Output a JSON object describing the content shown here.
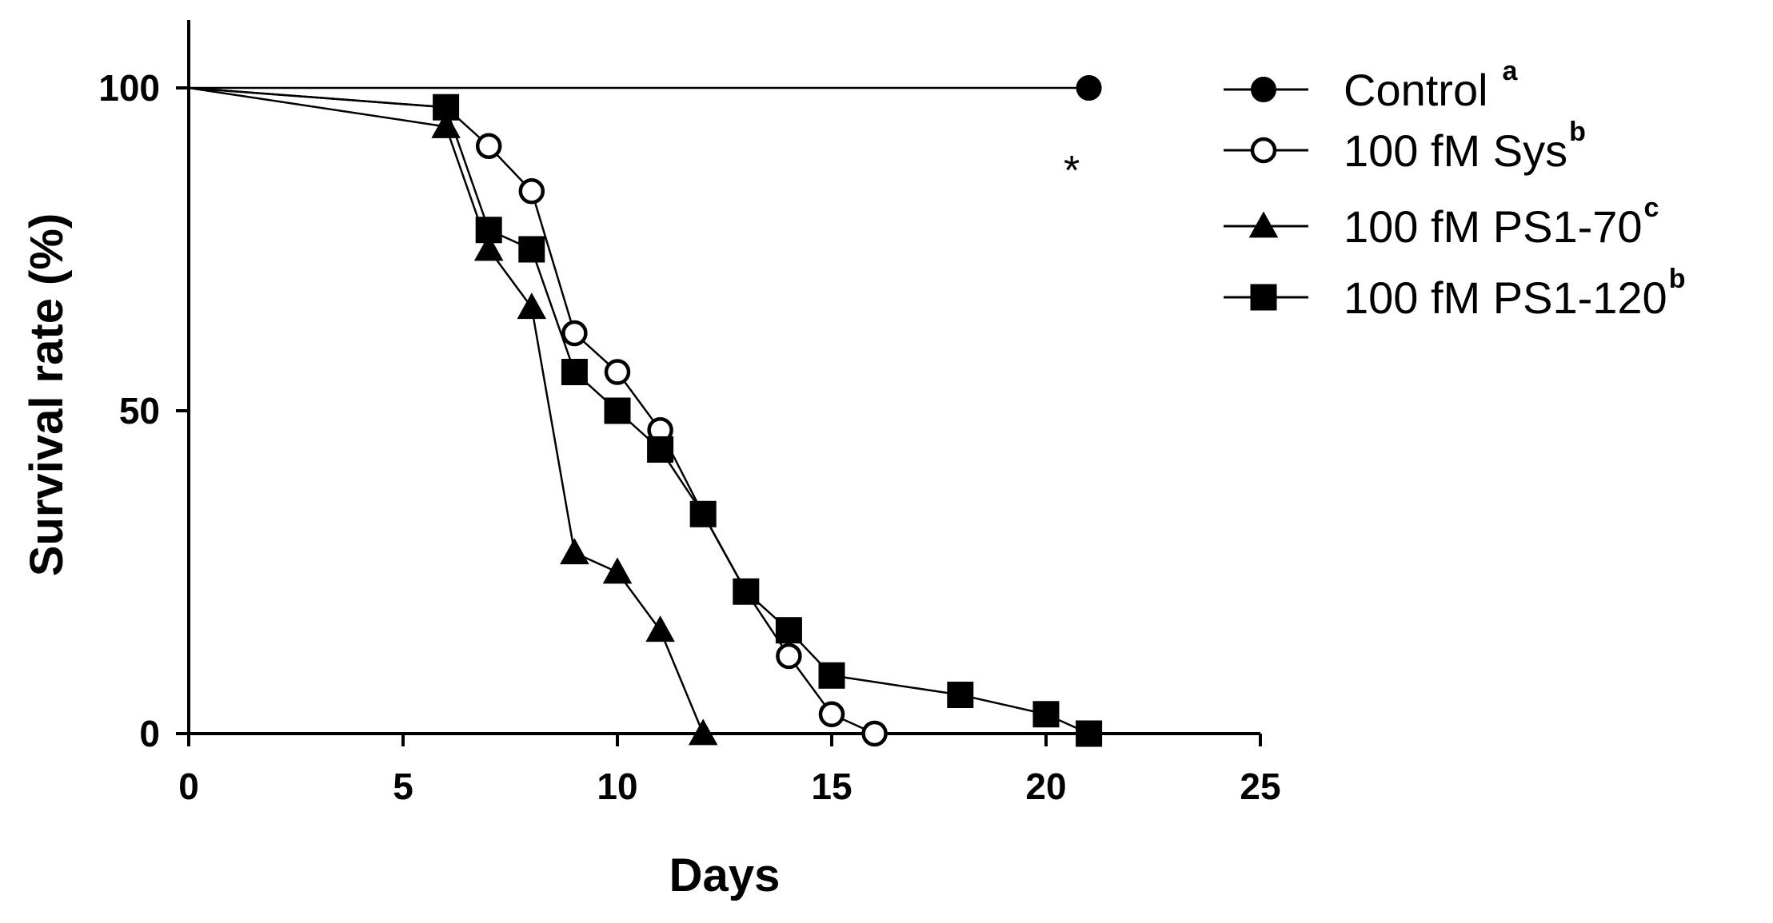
{
  "chart_data": {
    "type": "line",
    "title": "",
    "xlabel": "Days",
    "ylabel": "Survival rate (%)",
    "xlim": [
      0,
      25
    ],
    "ylim": [
      0,
      110
    ],
    "x_ticks": [
      "0",
      "5",
      "10",
      "15",
      "20",
      "25"
    ],
    "y_ticks": [
      "0",
      "50",
      "100"
    ],
    "grid": false,
    "legend_position": "top-right",
    "annotations": [
      {
        "text": "*",
        "x": 20.6,
        "y": 90
      }
    ],
    "series": [
      {
        "name": "Control",
        "superscript": "a",
        "marker": "filled-circle",
        "x": [
          0,
          21
        ],
        "y": [
          100,
          100
        ]
      },
      {
        "name": "100 fM Sys",
        "superscript": "b",
        "marker": "open-circle",
        "x": [
          0,
          6,
          7,
          8,
          9,
          10,
          11,
          12,
          13,
          14,
          15,
          16
        ],
        "y": [
          100,
          97,
          91,
          84,
          62,
          56,
          47,
          34,
          22,
          12,
          3,
          0
        ]
      },
      {
        "name": "100 fM PS1-70",
        "superscript": "c",
        "marker": "filled-triangle",
        "x": [
          0,
          6,
          7,
          8,
          9,
          10,
          11,
          12
        ],
        "y": [
          100,
          94,
          75,
          66,
          28,
          25,
          16,
          0
        ]
      },
      {
        "name": "100 fM PS1-120",
        "superscript": "b",
        "marker": "filled-square",
        "x": [
          0,
          6,
          7,
          8,
          9,
          10,
          11,
          12,
          13,
          14,
          15,
          18,
          20,
          21
        ],
        "y": [
          100,
          97,
          78,
          75,
          56,
          50,
          44,
          34,
          22,
          16,
          9,
          6,
          3,
          0
        ]
      }
    ]
  }
}
